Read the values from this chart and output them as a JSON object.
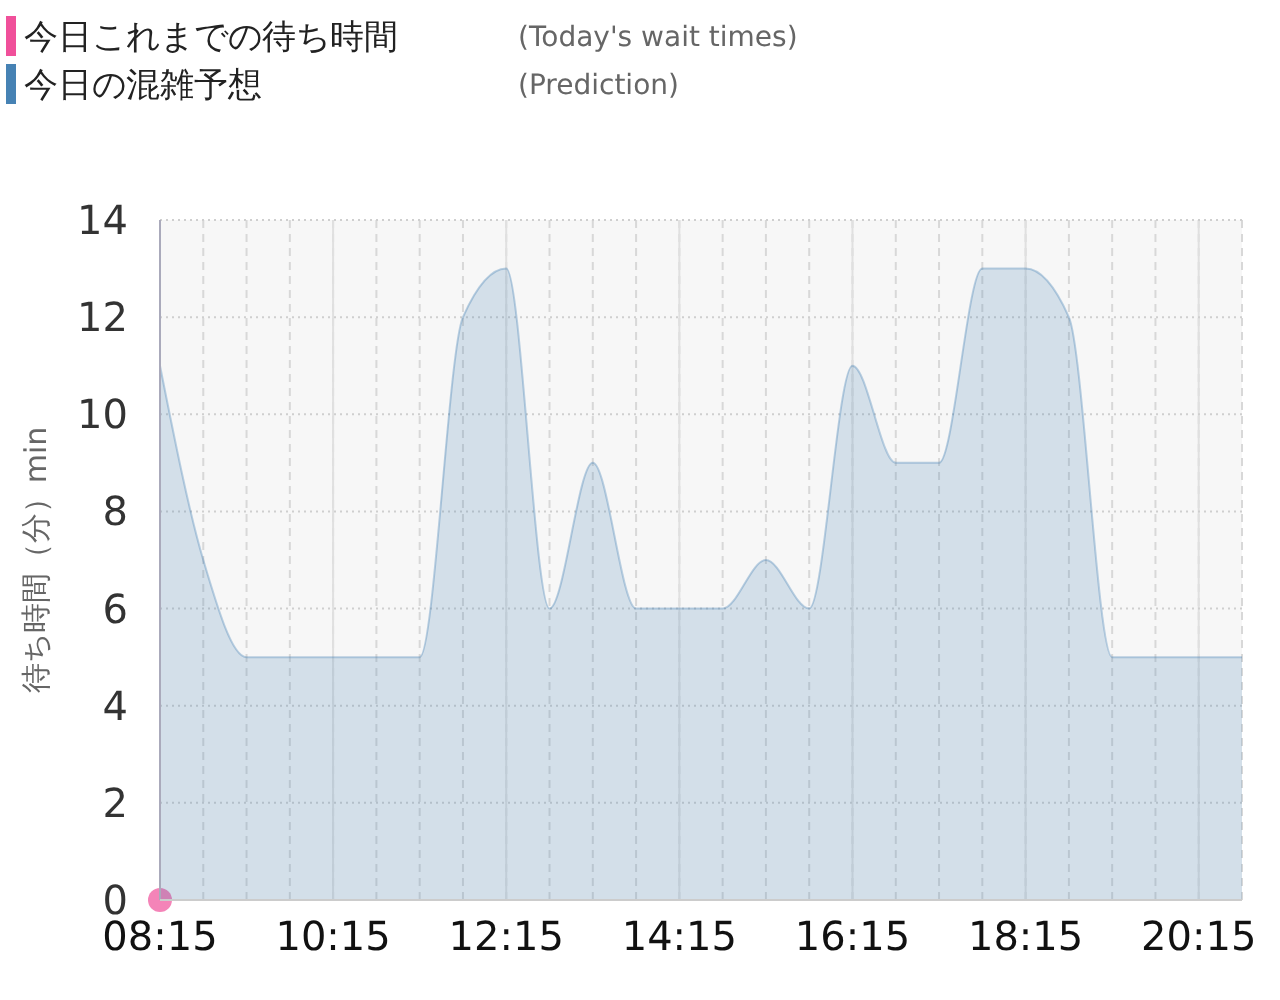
{
  "chart_data": {
    "type": "area",
    "ylabel": "待ち時間（分）min",
    "x": [
      8.25,
      8.75,
      9.25,
      9.75,
      10.25,
      10.75,
      11.25,
      11.75,
      12.25,
      12.75,
      13.25,
      13.75,
      14.25,
      14.75,
      15.25,
      15.75,
      16.25,
      16.75,
      17.25,
      17.75,
      18.25,
      18.75,
      19.25,
      19.75,
      20.25,
      20.75
    ],
    "series": [
      {
        "name": "今日これまでの待ち時間",
        "type": "scatter",
        "color": "#f0509a",
        "marker": "circle",
        "x": [
          8.25
        ],
        "values": [
          0
        ]
      },
      {
        "name": "今日の混雑予想",
        "color": "#4682b4",
        "values": [
          11,
          7,
          5,
          5,
          5,
          5,
          5,
          12,
          13,
          6,
          9,
          6,
          6,
          6,
          7,
          6,
          11,
          9,
          9,
          13,
          13,
          12,
          5,
          5,
          5,
          5
        ]
      }
    ],
    "annotations": [
      "(Today's wait times)",
      "(Prediction)"
    ],
    "xlim": [
      8.25,
      20.75
    ],
    "xticks": [
      {
        "value": 8.25,
        "label": "08:15"
      },
      {
        "value": 10.25,
        "label": "10:15"
      },
      {
        "value": 12.25,
        "label": "12:15"
      },
      {
        "value": 14.25,
        "label": "14:15"
      },
      {
        "value": 16.25,
        "label": "16:15"
      },
      {
        "value": 18.25,
        "label": "18:15"
      },
      {
        "value": 20.25,
        "label": "20:15"
      }
    ],
    "ylim": [
      0,
      14
    ],
    "yticks": [
      0,
      2,
      4,
      6,
      8,
      10,
      12,
      14
    ],
    "grid": true,
    "legend": "top left"
  }
}
